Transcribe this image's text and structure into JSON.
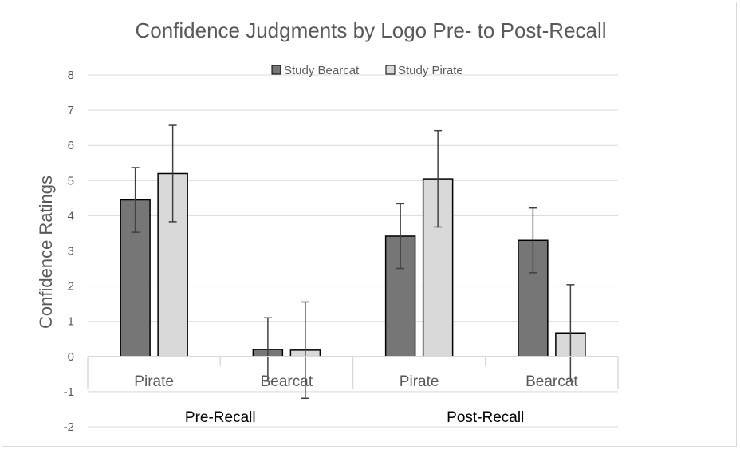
{
  "chart_data": {
    "type": "bar",
    "title": "Confidence Judgments by Logo Pre- to Post-Recall",
    "ylabel": "Confidence Ratings",
    "xlabel": "",
    "ylim": [
      -2,
      8
    ],
    "yticks": [
      -2,
      -1,
      0,
      1,
      2,
      3,
      4,
      5,
      6,
      7,
      8
    ],
    "grid": true,
    "legend_position": "top-center",
    "groups": [
      {
        "label": "Pre-Recall",
        "categories": [
          "Pirate",
          "Bearcat"
        ]
      },
      {
        "label": "Post-Recall",
        "categories": [
          "Pirate",
          "Bearcat"
        ]
      }
    ],
    "categories": [
      "Pirate",
      "Bearcat",
      "Pirate",
      "Bearcat"
    ],
    "series": [
      {
        "name": "Study Bearcat",
        "color": "#767676",
        "values": [
          4.45,
          0.2,
          3.42,
          3.3
        ],
        "errors": [
          0.92,
          0.9,
          0.92,
          0.92
        ]
      },
      {
        "name": "Study Pirate",
        "color": "#d9d9d9",
        "values": [
          5.2,
          0.18,
          5.05,
          0.67
        ],
        "errors": [
          1.37,
          1.37,
          1.37,
          1.37
        ]
      }
    ]
  }
}
